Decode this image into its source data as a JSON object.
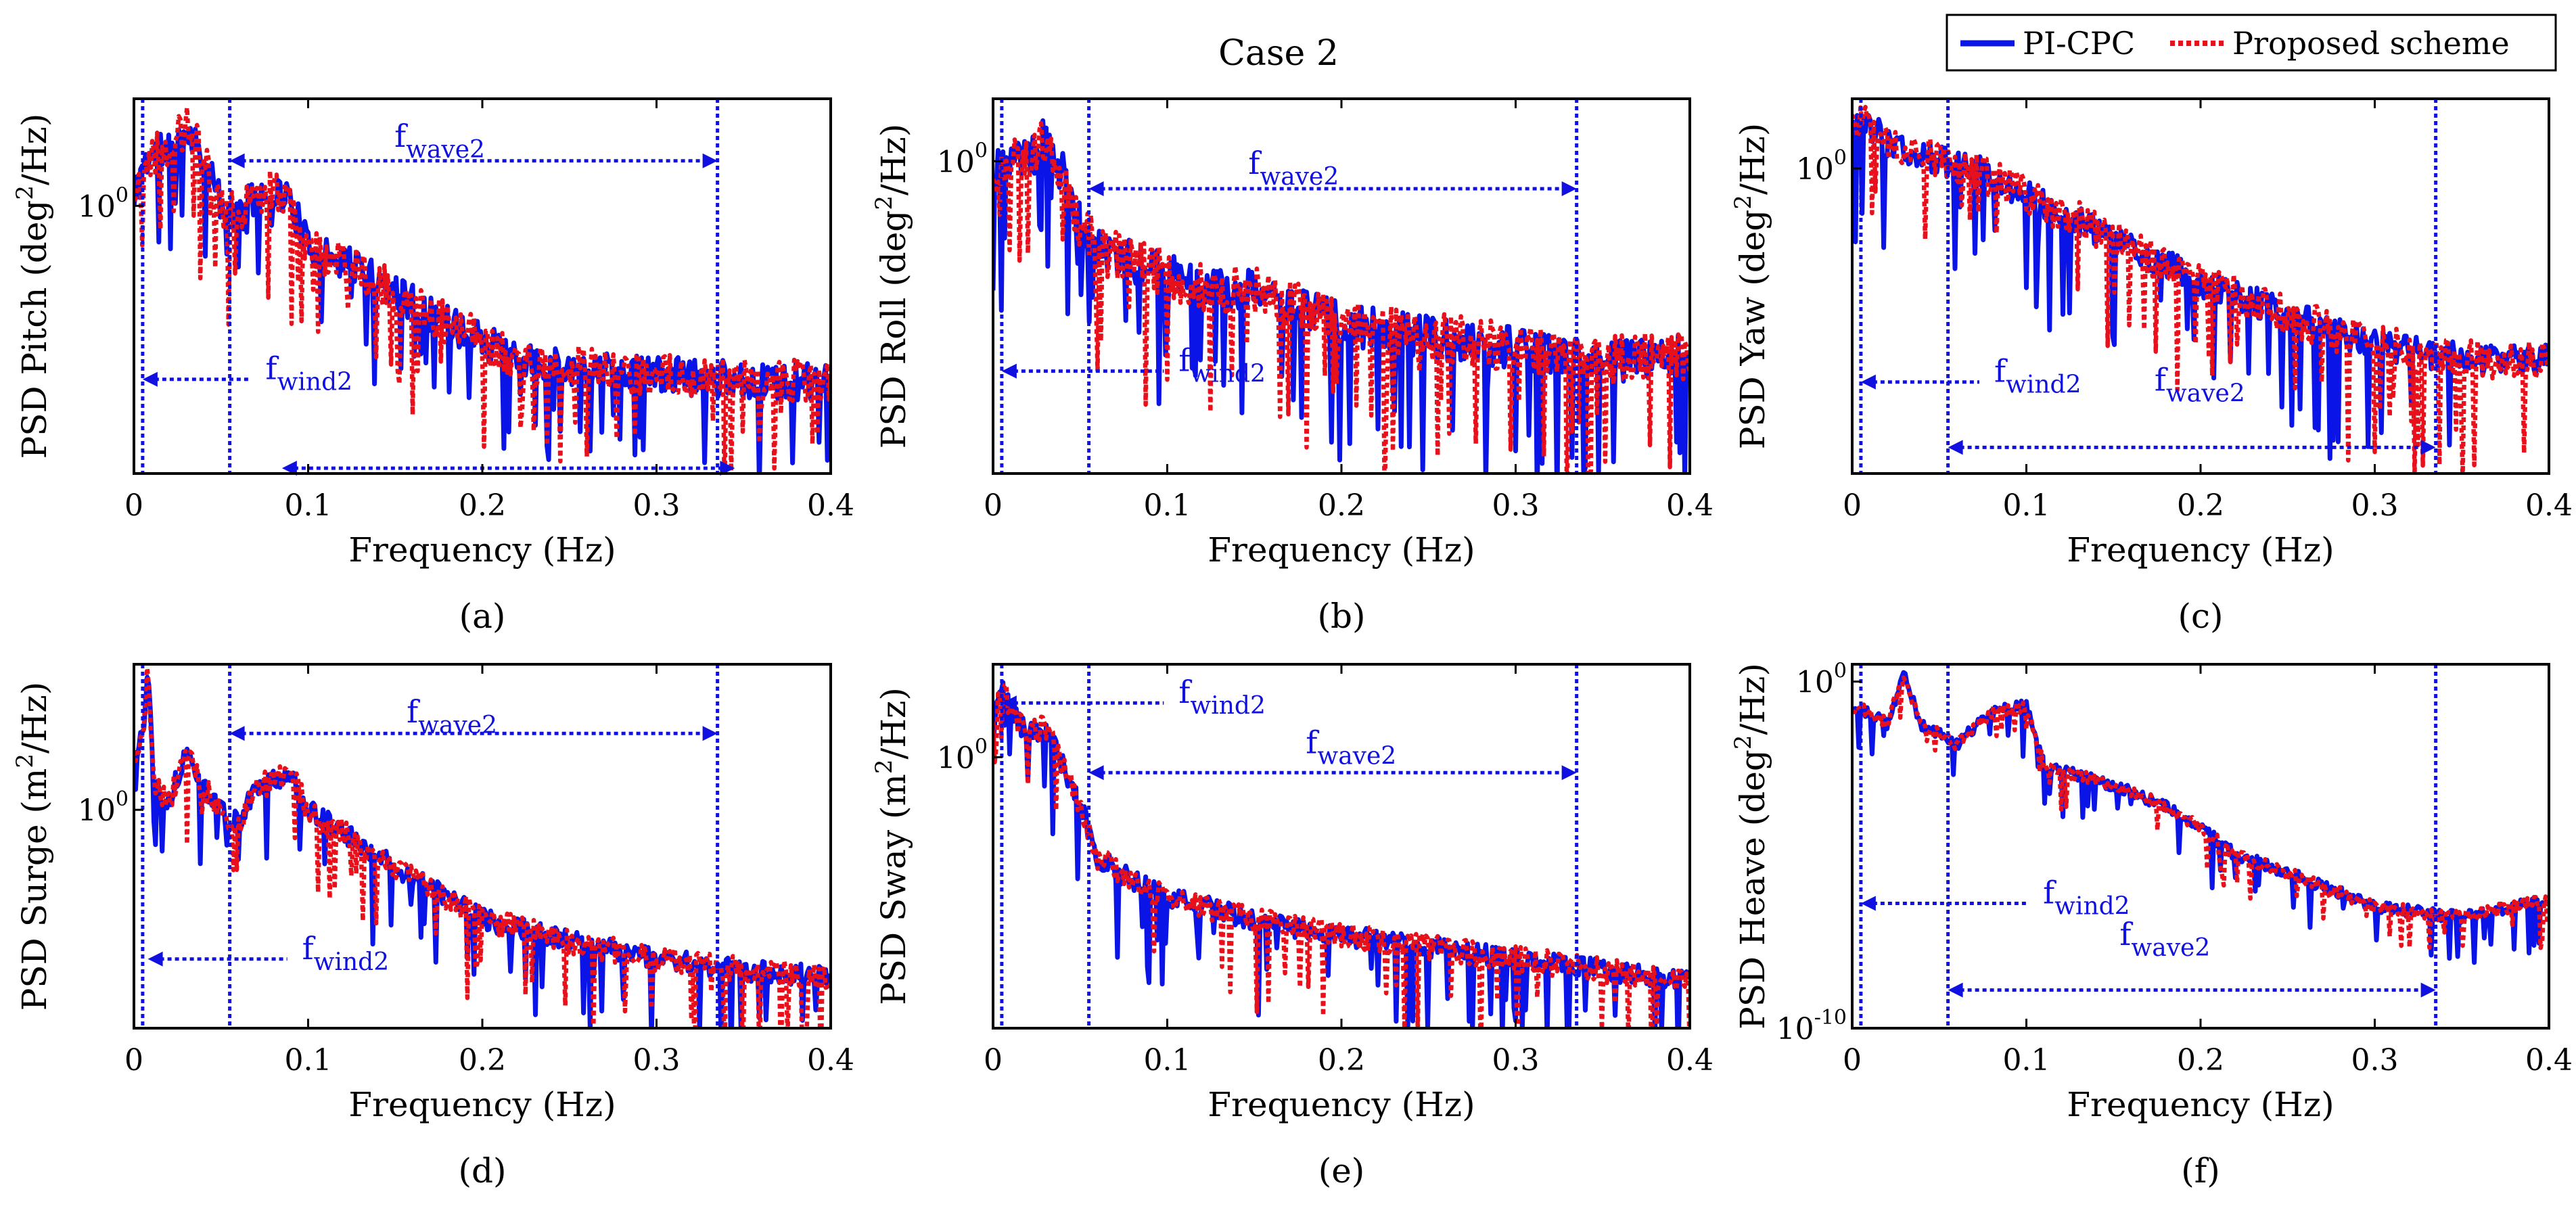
{
  "figure_title": "Case 2",
  "legend": [
    {
      "label": "PI-CPC",
      "color": "#0a14e6",
      "style": "solid"
    },
    {
      "label": "Proposed scheme",
      "color": "#e8101a",
      "style": "dotted"
    }
  ],
  "colors": {
    "series1": "#0a14e6",
    "series2": "#e8101a",
    "annotation": "#1010e0"
  },
  "chart_data": [
    {
      "type": "line",
      "panel": "(a)",
      "ylabel_prefix": "PSD Pitch (deg",
      "ylabel_suffix": "/Hz)",
      "xlabel": "Frequency (Hz)",
      "xlim": [
        0,
        0.4
      ],
      "ylim_log10": [
        -2.5,
        1.0
      ],
      "xticks": [
        0,
        0.1,
        0.2,
        0.3,
        0.4
      ],
      "xtick_labels": [
        "0",
        "0.1",
        "0.2",
        "0.3",
        "0.4"
      ],
      "ytick_label": "10",
      "ytick_exp": "0",
      "ytick_value_log10": 0,
      "vlines": [
        0.005,
        0.055,
        0.335
      ],
      "annotations": [
        {
          "base": "f",
          "sub": "wave2",
          "x_text": 0.148,
          "y_log10": 0.55,
          "arrow": [
            0.055,
            0.335
          ],
          "arrow_y_log10": 0.42
        },
        {
          "base": "f",
          "sub": "wind2",
          "x_text": 0.074,
          "y_log10": -1.62,
          "arrow": [
            0.005,
            0.074
          ],
          "arrow_y_log10": -1.62
        },
        {
          "base": "",
          "sub": "",
          "arrow": [
            0.085,
            0.345
          ],
          "arrow_y_log10": -2.45
        }
      ],
      "shape": [
        [
          0,
          0.0
        ],
        [
          0.005,
          0.4
        ],
        [
          0.01,
          0.45
        ],
        [
          0.02,
          0.55
        ],
        [
          0.03,
          0.75
        ],
        [
          0.04,
          0.45
        ],
        [
          0.05,
          0.0
        ],
        [
          0.06,
          -0.1
        ],
        [
          0.07,
          0.1
        ],
        [
          0.08,
          0.15
        ],
        [
          0.09,
          0.05
        ],
        [
          0.1,
          -0.4
        ],
        [
          0.12,
          -0.5
        ],
        [
          0.14,
          -0.7
        ],
        [
          0.16,
          -0.9
        ],
        [
          0.18,
          -1.1
        ],
        [
          0.2,
          -1.25
        ],
        [
          0.22,
          -1.45
        ],
        [
          0.25,
          -1.5
        ],
        [
          0.28,
          -1.55
        ],
        [
          0.32,
          -1.6
        ],
        [
          0.4,
          -1.65
        ]
      ],
      "series": [
        {
          "name": "PI-CPC",
          "seed": 11,
          "jitter": 0.35,
          "dip": 0.6
        },
        {
          "name": "Proposed scheme",
          "seed": 47,
          "jitter": 0.4,
          "dip": 0.7
        }
      ]
    },
    {
      "type": "line",
      "panel": "(b)",
      "ylabel_prefix": "PSD Roll (deg",
      "ylabel_suffix": "/Hz)",
      "xlabel": "Frequency (Hz)",
      "xlim": [
        0,
        0.4
      ],
      "ylim_log10": [
        -2.5,
        0.5
      ],
      "xticks": [
        0,
        0.1,
        0.2,
        0.3,
        0.4
      ],
      "xtick_labels": [
        "0",
        "0.1",
        "0.2",
        "0.3",
        "0.4"
      ],
      "ytick_label": "10",
      "ytick_exp": "0",
      "ytick_value_log10": 0,
      "vlines": [
        0.005,
        0.055,
        0.335
      ],
      "annotations": [
        {
          "base": "f",
          "sub": "wave2",
          "x_text": 0.145,
          "y_log10": -0.1,
          "arrow": [
            0.055,
            0.335
          ],
          "arrow_y_log10": -0.22
        },
        {
          "base": "f",
          "sub": "wind2",
          "x_text": 0.105,
          "y_log10": -1.68,
          "arrow": [
            0.005,
            0.105
          ],
          "arrow_y_log10": -1.68
        }
      ],
      "shape": [
        [
          0,
          -0.1
        ],
        [
          0.01,
          0.0
        ],
        [
          0.02,
          0.0
        ],
        [
          0.03,
          0.2
        ],
        [
          0.04,
          -0.1
        ],
        [
          0.05,
          -0.5
        ],
        [
          0.06,
          -0.7
        ],
        [
          0.08,
          -0.8
        ],
        [
          0.1,
          -0.9
        ],
        [
          0.12,
          -1.0
        ],
        [
          0.15,
          -1.05
        ],
        [
          0.18,
          -1.2
        ],
        [
          0.2,
          -1.3
        ],
        [
          0.25,
          -1.4
        ],
        [
          0.3,
          -1.5
        ],
        [
          0.35,
          -1.6
        ],
        [
          0.4,
          -1.55
        ]
      ],
      "series": [
        {
          "name": "PI-CPC",
          "seed": 23,
          "jitter": 0.35,
          "dip": 0.7
        },
        {
          "name": "Proposed scheme",
          "seed": 59,
          "jitter": 0.4,
          "dip": 0.8
        }
      ]
    },
    {
      "type": "line",
      "panel": "(c)",
      "ylabel_prefix": "PSD Yaw (deg",
      "ylabel_suffix": "/Hz)",
      "xlabel": "Frequency (Hz)",
      "xlim": [
        0,
        0.4
      ],
      "ylim_log10": [
        -3.5,
        0.8
      ],
      "xticks": [
        0,
        0.1,
        0.2,
        0.3,
        0.4
      ],
      "xtick_labels": [
        "0",
        "0.1",
        "0.2",
        "0.3",
        "0.4"
      ],
      "ytick_label": "10",
      "ytick_exp": "0",
      "ytick_value_log10": 0,
      "vlines": [
        0.005,
        0.055,
        0.335
      ],
      "annotations": [
        {
          "base": "f",
          "sub": "wind2",
          "x_text": 0.08,
          "y_log10": -2.45,
          "arrow": [
            0.005,
            0.08
          ],
          "arrow_y_log10": -2.45
        },
        {
          "base": "f",
          "sub": "wave2",
          "x_text": 0.172,
          "y_log10": -2.55,
          "arrow": [
            0.055,
            0.335
          ],
          "arrow_y_log10": -3.2
        }
      ],
      "shape": [
        [
          0,
          0.5
        ],
        [
          0.01,
          0.5
        ],
        [
          0.02,
          0.3
        ],
        [
          0.03,
          0.2
        ],
        [
          0.05,
          0.1
        ],
        [
          0.07,
          0.0
        ],
        [
          0.1,
          -0.3
        ],
        [
          0.13,
          -0.6
        ],
        [
          0.16,
          -0.9
        ],
        [
          0.2,
          -1.3
        ],
        [
          0.24,
          -1.6
        ],
        [
          0.28,
          -1.9
        ],
        [
          0.32,
          -2.1
        ],
        [
          0.36,
          -2.2
        ],
        [
          0.4,
          -2.2
        ]
      ],
      "series": [
        {
          "name": "PI-CPC",
          "seed": 31,
          "jitter": 0.35,
          "dip": 0.9
        },
        {
          "name": "Proposed scheme",
          "seed": 71,
          "jitter": 0.45,
          "dip": 1.0
        }
      ]
    },
    {
      "type": "line",
      "panel": "(d)",
      "ylabel_prefix": "PSD Surge (m",
      "ylabel_suffix": "/Hz)",
      "xlabel": "Frequency (Hz)",
      "xlim": [
        0,
        0.4
      ],
      "ylim_log10": [
        -3.0,
        2.0
      ],
      "xticks": [
        0,
        0.1,
        0.2,
        0.3,
        0.4
      ],
      "xtick_labels": [
        "0",
        "0.1",
        "0.2",
        "0.3",
        "0.4"
      ],
      "ytick_label": "10",
      "ytick_exp": "0",
      "ytick_value_log10": 0,
      "vlines": [
        0.005,
        0.055,
        0.335
      ],
      "annotations": [
        {
          "base": "f",
          "sub": "wave2",
          "x_text": 0.155,
          "y_log10": 1.2,
          "arrow": [
            0.055,
            0.335
          ],
          "arrow_y_log10": 1.05
        },
        {
          "base": "f",
          "sub": "wind2",
          "x_text": 0.095,
          "y_log10": -2.05,
          "arrow": [
            0.008,
            0.095
          ],
          "arrow_y_log10": -2.05
        }
      ],
      "shape": [
        [
          0,
          0.8
        ],
        [
          0.005,
          1.0
        ],
        [
          0.008,
          1.9
        ],
        [
          0.012,
          0.3
        ],
        [
          0.02,
          0.1
        ],
        [
          0.03,
          0.8
        ],
        [
          0.04,
          0.3
        ],
        [
          0.05,
          0.0
        ],
        [
          0.06,
          -0.2
        ],
        [
          0.07,
          0.3
        ],
        [
          0.09,
          0.5
        ],
        [
          0.1,
          0.0
        ],
        [
          0.12,
          -0.3
        ],
        [
          0.15,
          -0.8
        ],
        [
          0.18,
          -1.2
        ],
        [
          0.2,
          -1.5
        ],
        [
          0.25,
          -1.8
        ],
        [
          0.3,
          -2.05
        ],
        [
          0.35,
          -2.2
        ],
        [
          0.4,
          -2.3
        ]
      ],
      "series": [
        {
          "name": "PI-CPC",
          "seed": 13,
          "jitter": 0.3,
          "dip": 0.8
        },
        {
          "name": "Proposed scheme",
          "seed": 37,
          "jitter": 0.35,
          "dip": 0.9
        }
      ]
    },
    {
      "type": "line",
      "panel": "(e)",
      "ylabel_prefix": "PSD Sway (m",
      "ylabel_suffix": "/Hz)",
      "xlabel": "Frequency (Hz)",
      "xlim": [
        0,
        0.4
      ],
      "ylim_log10": [
        -3.5,
        1.2
      ],
      "xticks": [
        0,
        0.1,
        0.2,
        0.3,
        0.4
      ],
      "xtick_labels": [
        "0",
        "0.1",
        "0.2",
        "0.3",
        "0.4"
      ],
      "ytick_label": "10",
      "ytick_exp": "0",
      "ytick_value_log10": 0,
      "vlines": [
        0.005,
        0.055,
        0.335
      ],
      "annotations": [
        {
          "base": "f",
          "sub": "wind2",
          "x_text": 0.105,
          "y_log10": 0.7,
          "arrow": [
            0.005,
            0.105
          ],
          "arrow_y_log10": 0.7
        },
        {
          "base": "f",
          "sub": "wave2",
          "x_text": 0.178,
          "y_log10": 0.05,
          "arrow": [
            0.055,
            0.335
          ],
          "arrow_y_log10": -0.2
        }
      ],
      "shape": [
        [
          0,
          0.3
        ],
        [
          0.005,
          1.0
        ],
        [
          0.01,
          0.6
        ],
        [
          0.02,
          0.3
        ],
        [
          0.03,
          0.4
        ],
        [
          0.04,
          -0.1
        ],
        [
          0.05,
          -0.6
        ],
        [
          0.06,
          -1.3
        ],
        [
          0.08,
          -1.6
        ],
        [
          0.1,
          -1.8
        ],
        [
          0.15,
          -2.1
        ],
        [
          0.2,
          -2.3
        ],
        [
          0.25,
          -2.45
        ],
        [
          0.3,
          -2.6
        ],
        [
          0.35,
          -2.75
        ],
        [
          0.4,
          -2.9
        ]
      ],
      "series": [
        {
          "name": "PI-CPC",
          "seed": 19,
          "jitter": 0.28,
          "dip": 0.8
        },
        {
          "name": "Proposed scheme",
          "seed": 43,
          "jitter": 0.32,
          "dip": 0.9
        }
      ]
    },
    {
      "type": "line",
      "panel": "(f)",
      "ylabel_prefix": "PSD Heave (deg",
      "ylabel_suffix": "/Hz)",
      "xlabel": "Frequency (Hz)",
      "xlim": [
        0,
        0.4
      ],
      "ylim_log10": [
        -10.0,
        0.5
      ],
      "xticks": [
        0,
        0.1,
        0.2,
        0.3,
        0.4
      ],
      "xtick_labels": [
        "0",
        "0.1",
        "0.2",
        "0.3",
        "0.4"
      ],
      "ytick_label": "10",
      "ytick_exp": "0",
      "ytick_value_log10": 0,
      "ytick2_label": "10",
      "ytick2_exp": "-10",
      "ytick2_value_log10": -10,
      "vlines": [
        0.005,
        0.055,
        0.335
      ],
      "annotations": [
        {
          "base": "f",
          "sub": "wind2",
          "x_text": 0.108,
          "y_log10": -6.4,
          "arrow": [
            0.005,
            0.108
          ],
          "arrow_y_log10": -6.4
        },
        {
          "base": "f",
          "sub": "wave2",
          "x_text": 0.152,
          "y_log10": -7.6,
          "arrow": [
            0.055,
            0.335
          ],
          "arrow_y_log10": -8.9
        }
      ],
      "shape": [
        [
          0,
          -0.7
        ],
        [
          0.01,
          -0.9
        ],
        [
          0.02,
          -1.2
        ],
        [
          0.03,
          0.2
        ],
        [
          0.04,
          -1.3
        ],
        [
          0.05,
          -1.5
        ],
        [
          0.06,
          -1.8
        ],
        [
          0.08,
          -0.9
        ],
        [
          0.1,
          -0.7
        ],
        [
          0.11,
          -2.4
        ],
        [
          0.13,
          -2.7
        ],
        [
          0.15,
          -3.0
        ],
        [
          0.18,
          -3.6
        ],
        [
          0.2,
          -4.2
        ],
        [
          0.22,
          -5.0
        ],
        [
          0.25,
          -5.5
        ],
        [
          0.3,
          -6.5
        ],
        [
          0.35,
          -6.8
        ],
        [
          0.4,
          -6.3
        ]
      ],
      "series": [
        {
          "name": "PI-CPC",
          "seed": 29,
          "jitter": 0.35,
          "dip": 0.9
        },
        {
          "name": "Proposed scheme",
          "seed": 53,
          "jitter": 0.35,
          "dip": 0.8
        }
      ]
    }
  ]
}
